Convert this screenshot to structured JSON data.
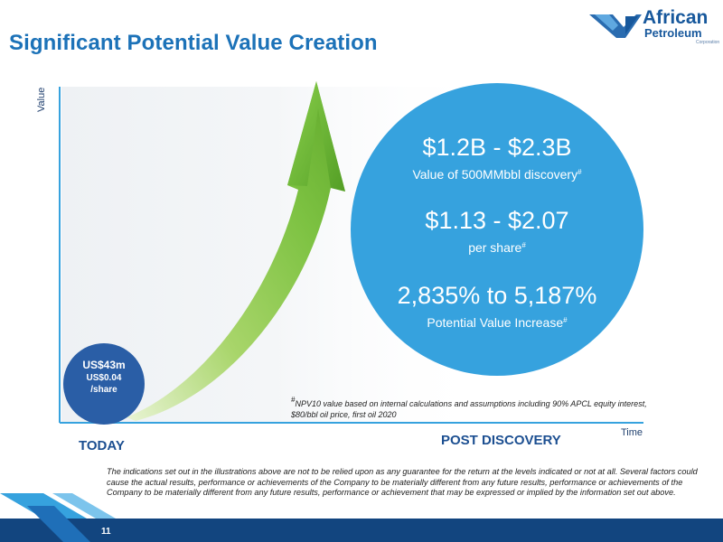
{
  "slide": {
    "title": "Significant Potential Value Creation",
    "page_number": "11"
  },
  "logo": {
    "line1": "African",
    "line2": "Petroleum",
    "line3": "Corporation"
  },
  "chart": {
    "y_axis_label": "Value",
    "x_axis_label": "Time"
  },
  "today": {
    "label": "TODAY",
    "value": "US$43m",
    "per_share": "US$0.04",
    "per_share_unit": "/share"
  },
  "post_discovery": {
    "label": "POST DISCOVERY",
    "value_range": "$1.2B - $2.3B",
    "value_desc": "Value of 500MMbbl discovery",
    "per_share_range": "$1.13 - $2.07",
    "per_share_desc": "per share",
    "increase_range": "2,835% to 5,187%",
    "increase_desc": "Potential Value Increase",
    "note_marker": "#"
  },
  "footnote": {
    "marker": "#",
    "text": "NPV10 value based on internal calculations and assumptions including 90% APCL equity interest, $80/bbl oil price, first oil 2020"
  },
  "disclaimer": "The indications set out in the illustrations above are not to be relied upon as any guarantee for the return at the levels indicated or not at all.  Several factors could cause the actual results, performance or achievements of the Company to be materially different from any future results, performance or achievements of the Company to be materially different from any future results, performance or achievement that may be expressed or implied by the information set out above.",
  "colors": {
    "title_blue": "#1c72b8",
    "big_circle": "#36a2de",
    "small_circle": "#2a5ea6",
    "arrow_green": "#7dc242",
    "footer_navy": "#12457f"
  },
  "icons": {
    "logo_mark": "bird-wing-icon",
    "growth_arrow": "upward-arrow-icon"
  }
}
